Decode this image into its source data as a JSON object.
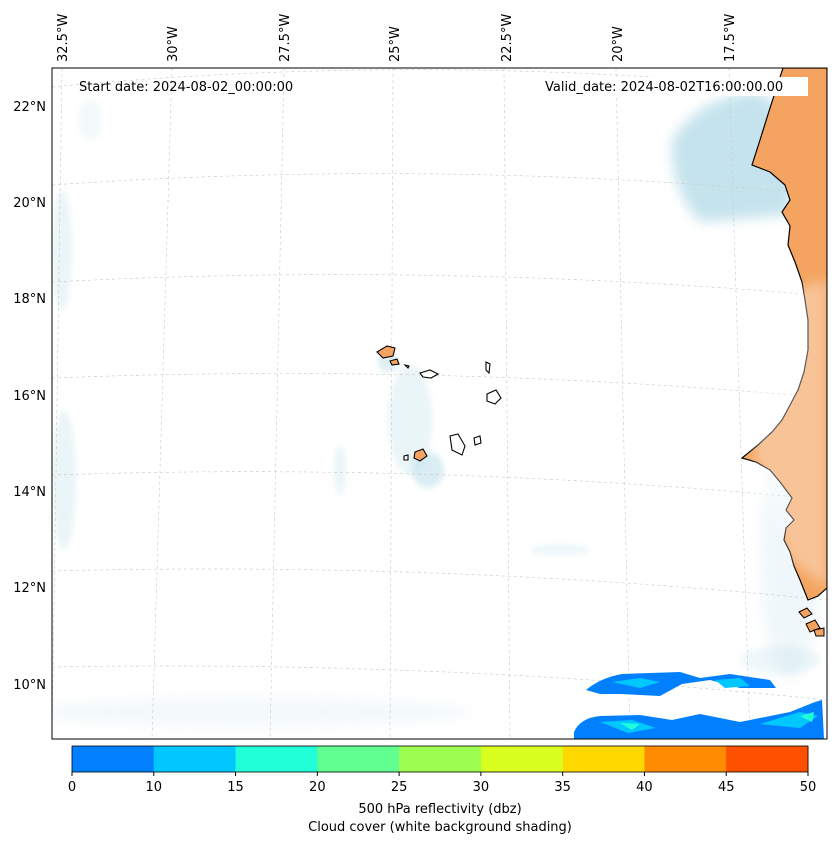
{
  "map": {
    "start_label": "Start date: 2024-08-02_00:00:00",
    "valid_label": "Valid_date: 2024-08-02T16:00:00.00",
    "lon_labels": [
      "32.5°W",
      "30°W",
      "27.5°W",
      "25°W",
      "22.5°W",
      "20°W",
      "17.5°W"
    ],
    "lat_labels": [
      "22°N",
      "20°N",
      "18°N",
      "16°N",
      "14°N",
      "12°N",
      "10°N"
    ]
  },
  "colorbar": {
    "ticks": [
      "0",
      "10",
      "15",
      "20",
      "25",
      "30",
      "35",
      "40",
      "45",
      "50"
    ],
    "colors": [
      "#0080ff",
      "#00c8ff",
      "#20ffd8",
      "#60ff90",
      "#9cff50",
      "#d8ff20",
      "#ffd800",
      "#ff8c00",
      "#ff5000"
    ],
    "label": "500 hPa reflectivity (dbz)",
    "sublabel": "Cloud cover (white background shading)"
  },
  "colors": {
    "land": "#f4a460",
    "cloud": "#add8e6",
    "coast": "#000000",
    "grid": "#c8c8c8"
  }
}
